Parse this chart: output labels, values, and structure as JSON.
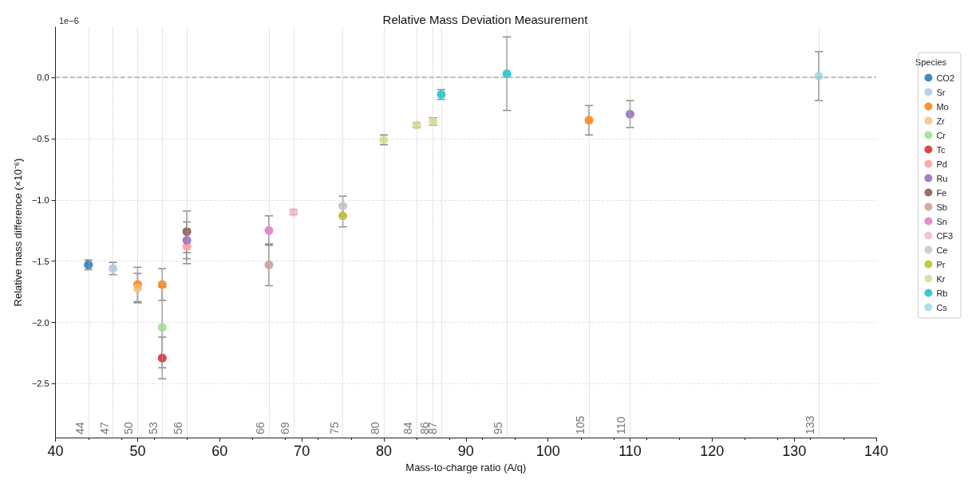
{
  "chart_data": {
    "type": "scatter",
    "title": "Relative Mass Deviation Measurement",
    "xlabel": "Mass-to-charge ratio (A/q)",
    "ylabel": "Relative mass difference (×10⁻⁶)",
    "legend_title": "Species",
    "legend": "top right",
    "grid": "y",
    "marker": "circle",
    "annotations": [
      "1e−6"
    ],
    "xlim": [
      40,
      140
    ],
    "xticks": [
      40,
      50,
      60,
      70,
      80,
      90,
      100,
      110,
      120,
      130,
      140
    ],
    "ylim": [
      -2.94,
      0.41
    ],
    "yticks": [
      {
        "value": -2.5,
        "label": "−2.5"
      },
      {
        "value": -2,
        "label": "−2.0"
      },
      {
        "value": -1.5,
        "label": "−1.5"
      },
      {
        "value": -1,
        "label": "−1.0"
      },
      {
        "value": -0.5,
        "label": "−0.5"
      },
      {
        "value": 0,
        "label": "0.0"
      }
    ],
    "ref_lines": [
      {
        "axis": "y",
        "value": 0,
        "label": null,
        "line_style": "dashed",
        "color": "#aaaaaa"
      },
      {
        "axis": "x",
        "value": 44,
        "label": "44",
        "line_style": "dotted",
        "color": "#cccccc"
      },
      {
        "axis": "x",
        "value": 47,
        "label": "47",
        "line_style": "dotted",
        "color": "#cccccc"
      },
      {
        "axis": "x",
        "value": 50,
        "label": "50",
        "line_style": "dotted",
        "color": "#cccccc"
      },
      {
        "axis": "x",
        "value": 53,
        "label": "53",
        "line_style": "dotted",
        "color": "#cccccc"
      },
      {
        "axis": "x",
        "value": 56,
        "label": "56",
        "line_style": "dotted",
        "color": "#cccccc"
      },
      {
        "axis": "x",
        "value": 66,
        "label": "66",
        "line_style": "dotted",
        "color": "#cccccc"
      },
      {
        "axis": "x",
        "value": 69,
        "label": "69",
        "line_style": "dotted",
        "color": "#cccccc"
      },
      {
        "axis": "x",
        "value": 75,
        "label": "75",
        "line_style": "dotted",
        "color": "#cccccc"
      },
      {
        "axis": "x",
        "value": 80,
        "label": "80",
        "line_style": "dotted",
        "color": "#cccccc"
      },
      {
        "axis": "x",
        "value": 84,
        "label": "84",
        "line_style": "dotted",
        "color": "#cccccc"
      },
      {
        "axis": "x",
        "value": 86,
        "label": "86",
        "line_style": "dotted",
        "color": "#cccccc"
      },
      {
        "axis": "x",
        "value": 87,
        "label": "87",
        "line_style": "dotted",
        "color": "#cccccc"
      },
      {
        "axis": "x",
        "value": 95,
        "label": "95",
        "line_style": "dotted",
        "color": "#cccccc"
      },
      {
        "axis": "x",
        "value": 105,
        "label": "105",
        "line_style": "dotted",
        "color": "#cccccc"
      },
      {
        "axis": "x",
        "value": 110,
        "label": "110",
        "line_style": "dotted",
        "color": "#cccccc"
      },
      {
        "axis": "x",
        "value": 133,
        "label": "133",
        "line_style": "dotted",
        "color": "#cccccc"
      }
    ],
    "series": [
      {
        "name": "CO2",
        "color": "#1f77b4",
        "x": [
          44
        ],
        "values": [
          -1.53
        ],
        "errors": [
          0.04
        ]
      },
      {
        "name": "Sr",
        "color": "#aec7e8",
        "x": [
          47
        ],
        "values": [
          -1.56
        ],
        "errors": [
          0.05
        ]
      },
      {
        "name": "Mo",
        "color": "#ff7f0e",
        "x": [
          50,
          53,
          105
        ],
        "values": [
          -1.69,
          -1.69,
          -0.35
        ],
        "errors": [
          0.14,
          0.13,
          0.12
        ]
      },
      {
        "name": "Zr",
        "color": "#ffbb78",
        "x": [
          50
        ],
        "values": [
          -1.72
        ],
        "errors": [
          0.12
        ]
      },
      {
        "name": "Cr",
        "color": "#98df8a",
        "x": [
          53
        ],
        "values": [
          -2.04
        ],
        "errors": [
          0.33
        ]
      },
      {
        "name": "Tc",
        "color": "#d62728",
        "x": [
          53
        ],
        "values": [
          -2.29
        ],
        "errors": [
          0.17
        ]
      },
      {
        "name": "Pd",
        "color": "#ff9896",
        "x": [
          56
        ],
        "values": [
          -1.38
        ],
        "errors": [
          0.14
        ]
      },
      {
        "name": "Ru",
        "color": "#9467bd",
        "x": [
          56,
          110
        ],
        "values": [
          -1.33,
          -0.3
        ],
        "errors": [
          0.15,
          0.11
        ]
      },
      {
        "name": "Fe",
        "color": "#8c564b",
        "x": [
          56
        ],
        "values": [
          -1.26
        ],
        "errors": [
          0.17
        ]
      },
      {
        "name": "Sb",
        "color": "#c49c94",
        "x": [
          66
        ],
        "values": [
          -1.53
        ],
        "errors": [
          0.17
        ]
      },
      {
        "name": "Sn",
        "color": "#e377c2",
        "x": [
          66
        ],
        "values": [
          -1.25
        ],
        "errors": [
          0.12
        ]
      },
      {
        "name": "CF3",
        "color": "#f7b6d2",
        "x": [
          69
        ],
        "values": [
          -1.1
        ],
        "errors": [
          0.02
        ]
      },
      {
        "name": "Ce",
        "color": "#c7c7c7",
        "x": [
          75
        ],
        "values": [
          -1.05
        ],
        "errors": [
          0.08
        ]
      },
      {
        "name": "Pr",
        "color": "#bcbd22",
        "x": [
          75
        ],
        "values": [
          -1.13
        ],
        "errors": [
          0.09
        ]
      },
      {
        "name": "Kr",
        "color": "#dbdb8d",
        "x": [
          80,
          84,
          86
        ],
        "values": [
          -0.51,
          -0.39,
          -0.36
        ],
        "errors": [
          0.04,
          0.02,
          0.03
        ]
      },
      {
        "name": "Rb",
        "color": "#17becf",
        "x": [
          87,
          95
        ],
        "values": [
          -0.14,
          0.03
        ],
        "errors": [
          0.04,
          0.3
        ]
      },
      {
        "name": "Cs",
        "color": "#9edae5",
        "x": [
          133
        ],
        "values": [
          0.01
        ],
        "errors": [
          0.2
        ]
      }
    ]
  }
}
